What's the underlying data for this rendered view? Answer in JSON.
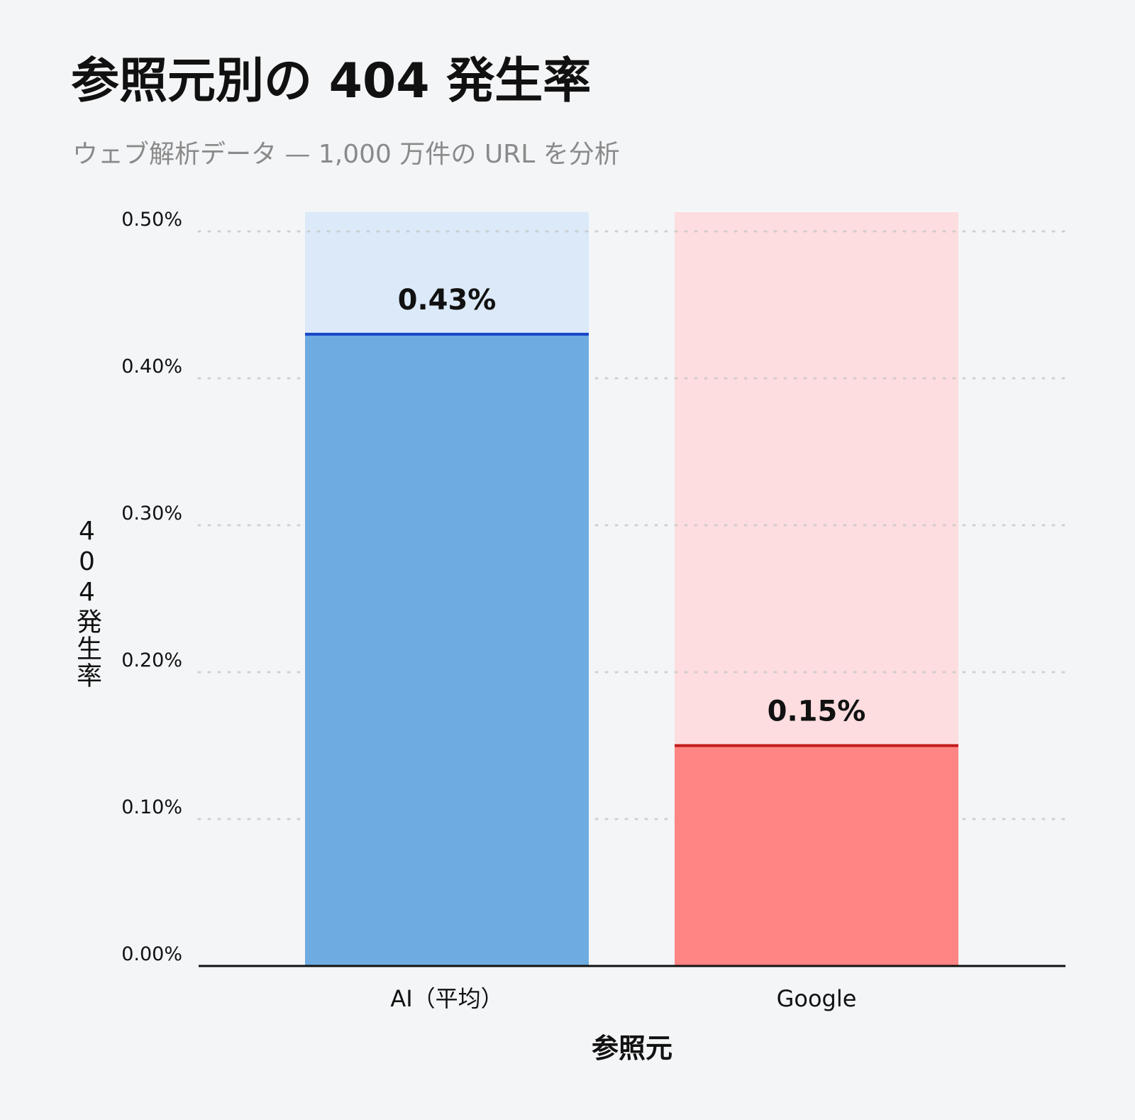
{
  "chart_data": {
    "type": "bar",
    "title": "参照元別の 404 発生率",
    "subtitle": "ウェブ解析データ — 1,000 万件の URL を分析",
    "xlabel": "参照元",
    "ylabel": "404発生率",
    "categories": [
      "AI（平均）",
      "Google"
    ],
    "values": [
      0.43,
      0.15
    ],
    "value_labels": [
      "0.43%",
      "0.15%"
    ],
    "ylim": [
      0,
      0.5
    ],
    "yticks": [
      0,
      0.1,
      0.2,
      0.3,
      0.4,
      0.5
    ],
    "ytick_labels": [
      "0.00%",
      "0.10%",
      "0.20%",
      "0.30%",
      "0.40%",
      "0.50%"
    ],
    "grid": true,
    "colors": {
      "bars": [
        "#6eabe0",
        "#ff8484"
      ],
      "bar_backgrounds": [
        "#dbe9f8",
        "#fddddf"
      ],
      "bar_tops": [
        "#1746c8",
        "#c41a1a"
      ],
      "grid": "#c8c8c8",
      "axis": "#111111"
    }
  }
}
